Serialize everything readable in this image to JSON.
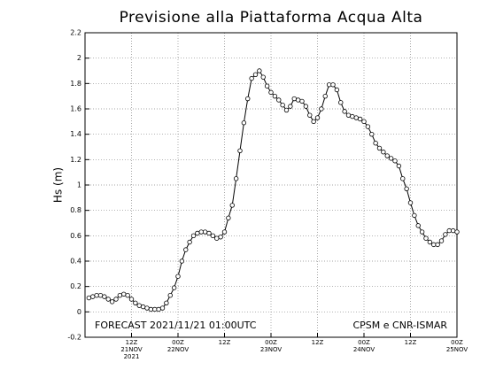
{
  "chart_data": {
    "type": "line",
    "title": "Previsione alla Piattaforma Acqua Alta",
    "ylabel": "Hs (m)",
    "annotations": [
      "FORECAST 2021/11/21 01:00UTC",
      "CPSM e CNR-ISMAR"
    ],
    "x": [
      1,
      2,
      3,
      4,
      5,
      6,
      7,
      8,
      9,
      10,
      11,
      12,
      13,
      14,
      15,
      16,
      17,
      18,
      19,
      20,
      21,
      22,
      23,
      24,
      25,
      26,
      27,
      28,
      29,
      30,
      31,
      32,
      33,
      34,
      35,
      36,
      37,
      38,
      39,
      40,
      41,
      42,
      43,
      44,
      45,
      46,
      47,
      48,
      49,
      50,
      51,
      52,
      53,
      54,
      55,
      56,
      57,
      58,
      59,
      60,
      61,
      62,
      63,
      64,
      65,
      66,
      67,
      68,
      69,
      70,
      71,
      72,
      73,
      74,
      75,
      76,
      77,
      78,
      79,
      80,
      81,
      82,
      83,
      84,
      85,
      86,
      87,
      88,
      89,
      90,
      91,
      92,
      93,
      94,
      95,
      96
    ],
    "series": [
      {
        "name": "Hs",
        "color": "#000000",
        "values": [
          0.11,
          0.12,
          0.13,
          0.13,
          0.12,
          0.1,
          0.08,
          0.1,
          0.13,
          0.14,
          0.13,
          0.1,
          0.07,
          0.05,
          0.04,
          0.03,
          0.02,
          0.02,
          0.02,
          0.03,
          0.07,
          0.13,
          0.19,
          0.28,
          0.4,
          0.49,
          0.55,
          0.6,
          0.62,
          0.63,
          0.63,
          0.62,
          0.6,
          0.58,
          0.59,
          0.63,
          0.74,
          0.84,
          1.05,
          1.27,
          1.49,
          1.68,
          1.84,
          1.87,
          1.9,
          1.85,
          1.78,
          1.73,
          1.7,
          1.67,
          1.63,
          1.59,
          1.62,
          1.68,
          1.67,
          1.66,
          1.62,
          1.55,
          1.5,
          1.53,
          1.6,
          1.7,
          1.79,
          1.79,
          1.75,
          1.65,
          1.58,
          1.55,
          1.54,
          1.53,
          1.52,
          1.5,
          1.46,
          1.4,
          1.33,
          1.29,
          1.26,
          1.23,
          1.21,
          1.19,
          1.15,
          1.05,
          0.97,
          0.86,
          0.76,
          0.68,
          0.63,
          0.58,
          0.55,
          0.53,
          0.53,
          0.56,
          0.61,
          0.64,
          0.64,
          0.63
        ]
      }
    ],
    "xlim": [
      0,
      96
    ],
    "xticks": [
      {
        "value": 12,
        "label": [
          "12Z",
          "21NOV",
          "2021"
        ]
      },
      {
        "value": 24,
        "label": [
          "00Z",
          "22NOV"
        ]
      },
      {
        "value": 36,
        "label": [
          "12Z"
        ]
      },
      {
        "value": 48,
        "label": [
          "00Z",
          "23NOV"
        ]
      },
      {
        "value": 60,
        "label": [
          "12Z"
        ]
      },
      {
        "value": 72,
        "label": [
          "00Z",
          "24NOV"
        ]
      },
      {
        "value": 84,
        "label": [
          "12Z"
        ]
      },
      {
        "value": 96,
        "label": [
          "00Z",
          "25NOV"
        ]
      }
    ],
    "ylim": [
      -0.2,
      2.2
    ],
    "yticks": [
      -0.2,
      0,
      0.2,
      0.4,
      0.6,
      0.8,
      1,
      1.2,
      1.4,
      1.6,
      1.8,
      2,
      2.2
    ],
    "grid": true
  }
}
